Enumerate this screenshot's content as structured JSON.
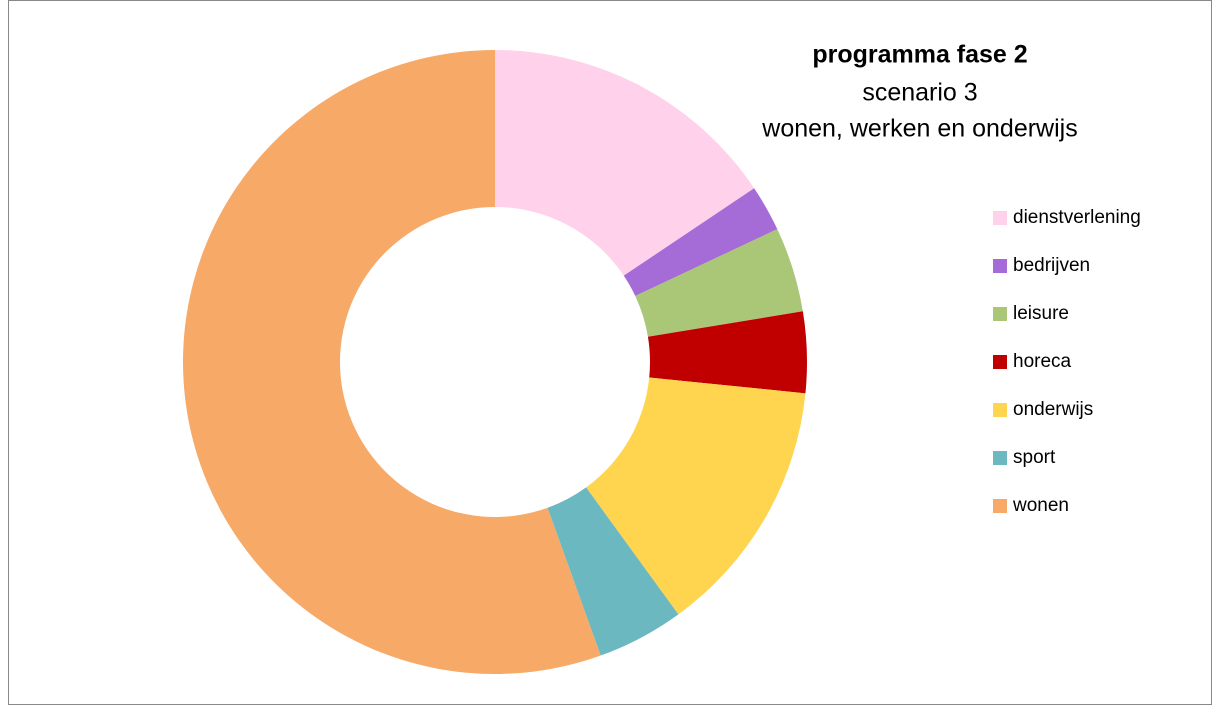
{
  "chart_data": {
    "type": "donut",
    "title": "programma fase 2",
    "subtitle": [
      "scenario 3",
      "wonen, werken en onderwijs"
    ],
    "categories": [
      "dienstverlening",
      "bedrijven",
      "leisure",
      "horeca",
      "onderwijs",
      "sport",
      "wonen"
    ],
    "values": [
      15.6,
      2.4,
      4.4,
      4.2,
      13.4,
      4.5,
      55.5
    ],
    "colors": [
      "#ffd1ea",
      "#a56bd6",
      "#aac677",
      "#c00000",
      "#ffd54f",
      "#6bb8c0",
      "#f7a967"
    ],
    "legend": "right"
  }
}
